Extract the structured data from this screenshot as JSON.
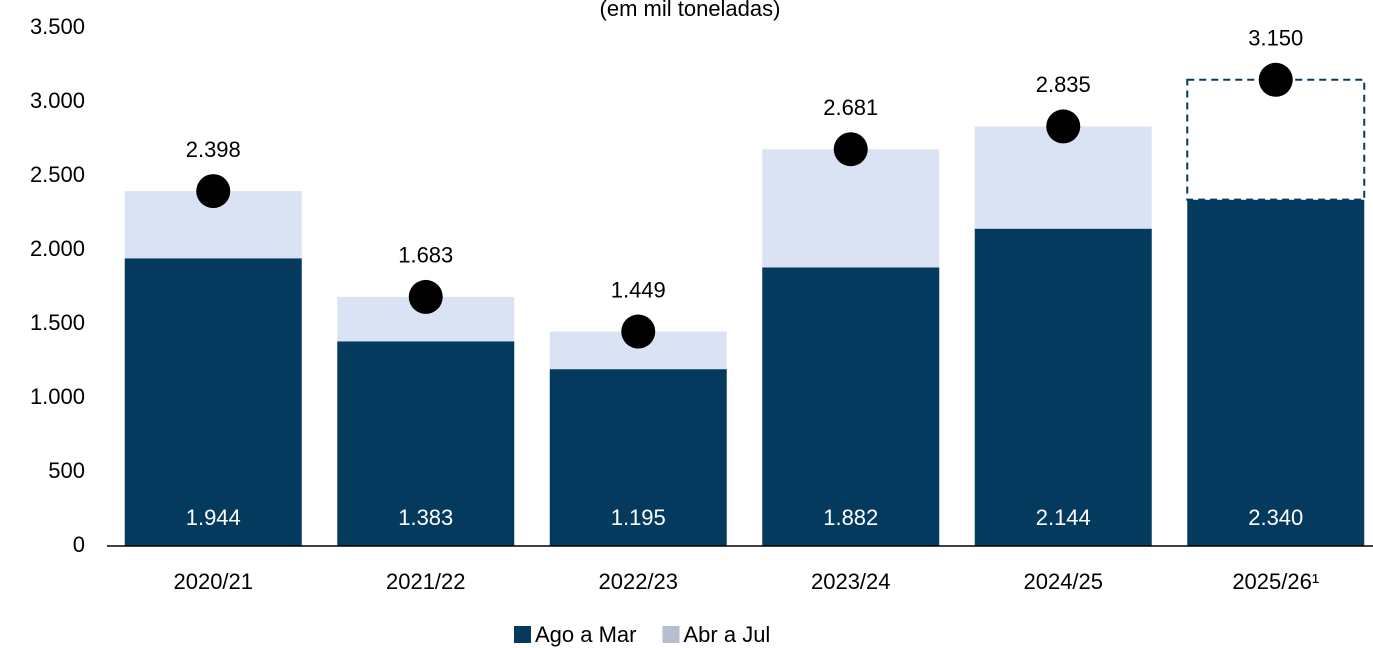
{
  "chart_data": {
    "type": "stacked_bar",
    "subtitle": "(em mil toneladas)",
    "categories": [
      "2020/21",
      "2021/22",
      "2022/23",
      "2023/24",
      "2024/25",
      "2025/26¹"
    ],
    "series": [
      {
        "name": "Ago a Mar",
        "color": "#053a5f",
        "values": [
          1944,
          1383,
          1195,
          1882,
          2144,
          2340
        ],
        "value_labels": [
          "1.944",
          "1.383",
          "1.195",
          "1.882",
          "2.144",
          "2.340"
        ]
      },
      {
        "name": "Abr a Jul",
        "color": "#dae3f3",
        "values": [
          454,
          300,
          254,
          799,
          691,
          810
        ],
        "dashed": [
          false,
          false,
          false,
          false,
          false,
          true
        ]
      }
    ],
    "totals": {
      "color": "#000000",
      "values": [
        2398,
        1683,
        1449,
        2681,
        2835,
        3150
      ],
      "value_labels": [
        "2.398",
        "1.683",
        "1.449",
        "2.681",
        "2.835",
        "3.150"
      ]
    },
    "ylim": [
      0,
      3500
    ],
    "yticks": [
      0,
      500,
      {
        "value": 1000,
        "label": "1.000"
      },
      {
        "value": 1500,
        "label": "1.500"
      },
      {
        "value": 2000,
        "label": "2.000"
      },
      {
        "value": 2500,
        "label": "2.500"
      },
      {
        "value": 3000,
        "label": "3.000"
      },
      {
        "value": 3500,
        "label": "3.500"
      }
    ],
    "legend": "bottom"
  }
}
